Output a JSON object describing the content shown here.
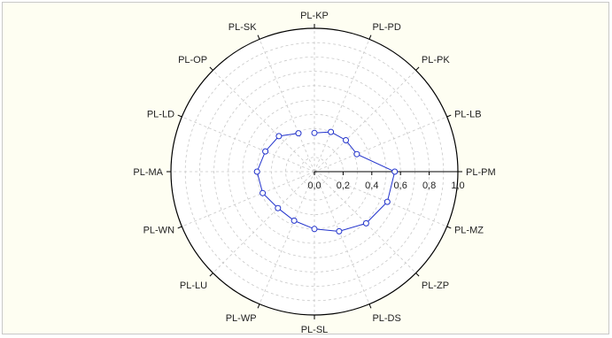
{
  "chart_data": {
    "type": "radar",
    "categories": [
      "PL-KP",
      "PL-PD",
      "PL-PK",
      "PL-LB",
      "PL-PM",
      "PL-MZ",
      "PL-ZP",
      "PL-DS",
      "PL-SL",
      "PL-WP",
      "PL-LU",
      "PL-WN",
      "PL-MA",
      "PL-LD",
      "PL-OP",
      "PL-SK"
    ],
    "series": [
      {
        "values": [
          0.27,
          0.3,
          0.31,
          0.32,
          0.56,
          0.55,
          0.51,
          0.45,
          0.4,
          0.37,
          0.36,
          0.39,
          0.4,
          0.37,
          0.35,
          0.29
        ],
        "color": "#2233cc"
      }
    ],
    "radial_axis": {
      "ticks": [
        "0,0",
        "0,2",
        "0,4",
        "0,6",
        "0,8",
        "1,0"
      ],
      "range": [
        0,
        1
      ],
      "values": [
        0.0,
        0.2,
        0.4,
        0.6,
        0.8,
        1.0
      ]
    },
    "grid": true,
    "title": "",
    "xlabel": "",
    "ylabel": ""
  },
  "colors": {
    "frame_background": "#fefef2",
    "plot_background": "#ffffff",
    "series_line": "#2233cc",
    "grid": "#c8c8c8",
    "axis": "#000000"
  }
}
